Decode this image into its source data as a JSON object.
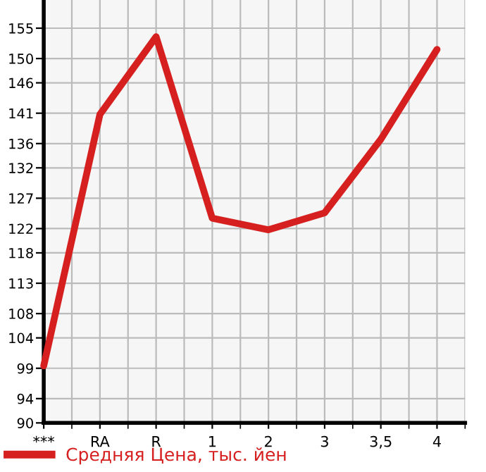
{
  "chart_data": {
    "type": "line",
    "categories": [
      "***",
      "RA",
      "R",
      "1",
      "2",
      "3",
      "3,5",
      "4"
    ],
    "series": [
      {
        "name": "Средняя Цена, тыс. йен",
        "color": "#d61f1f",
        "values": [
          99.4,
          140.8,
          153.6,
          123.7,
          121.8,
          124.6,
          136.7,
          151.5
        ]
      }
    ],
    "ylim": [
      90,
      159.64
    ],
    "yticks": [
      90,
      94,
      99,
      104,
      108,
      113,
      118,
      122,
      127,
      132,
      136,
      141,
      146,
      150,
      155
    ],
    "grid": true,
    "legend": "bottom left",
    "marker": "none",
    "line_style": "solid"
  }
}
